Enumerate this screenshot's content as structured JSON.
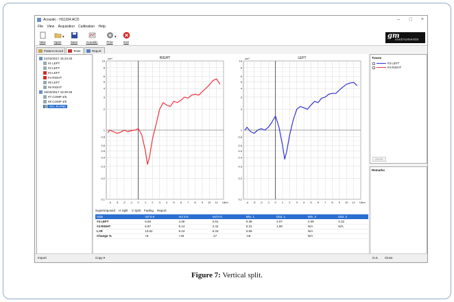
{
  "window": {
    "title": "Acoustic - H11334.ACD",
    "min": "–",
    "max": "□",
    "close": "×"
  },
  "menu": [
    "File",
    "View",
    "Acquisition",
    "Calibration",
    "Help"
  ],
  "toolbar": [
    {
      "label": "New",
      "icon": "new-file-icon"
    },
    {
      "label": "Open",
      "icon": "open-folder-icon"
    },
    {
      "label": "Save",
      "icon": "save-icon"
    },
    {
      "label": "Acoustic",
      "icon": "acoustic-icon"
    },
    {
      "label": "Print",
      "icon": "print-icon"
    },
    {
      "label": "Exit",
      "icon": "exit-icon"
    }
  ],
  "brand": {
    "line1": "gm",
    "line2": "instruments"
  },
  "tabs": [
    "Patient record",
    "Tests",
    "Report"
  ],
  "tree": [
    {
      "label": "21/02/2017 15:34:40",
      "level": 0
    },
    {
      "label": "#1 LEFT",
      "level": 1
    },
    {
      "label": "#2 LEFT",
      "level": 1
    },
    {
      "label": "#3 LEFT",
      "level": 1,
      "mark": true
    },
    {
      "label": "#4 RIGHT",
      "level": 1,
      "mark": true
    },
    {
      "label": "#5 LEFT",
      "level": 1
    },
    {
      "label": "#6 RIGHT",
      "level": 1
    },
    {
      "label": "15/10/2017 15:30:25",
      "level": 0
    },
    {
      "label": "#7 COMP 4/6",
      "level": 1
    },
    {
      "label": "#8 COMP 3/5",
      "level": 1
    },
    {
      "label": "#3 L R+P60",
      "level": 1,
      "selected": true
    }
  ],
  "charts": {
    "right_title": "RIGHT",
    "left_title": "LEFT",
    "y_unit": "cm²",
    "x_unit": "cm",
    "y_ticks": [
      "10",
      "8",
      "6",
      "5",
      "4",
      "3",
      "2",
      "1",
      "0.8",
      "0.6",
      "0.5",
      "0.4",
      "0.3",
      "0.2",
      "0.1"
    ],
    "x_ticks": [
      "-4",
      "-3",
      "-2",
      "-1",
      "0",
      "1",
      "2",
      "3",
      "4",
      "5",
      "6",
      "7",
      "8",
      "9",
      "10",
      "11",
      "12"
    ],
    "colors": {
      "right": "#e8303a",
      "left": "#3030d8"
    }
  },
  "chart_data": [
    {
      "type": "line",
      "title": "RIGHT",
      "xlabel": "cm",
      "ylabel": "cm²",
      "ylog": true,
      "xlim": [
        -4.5,
        12
      ],
      "ylim": [
        0.1,
        10
      ],
      "series": [
        {
          "name": "#4 RIGHT",
          "color": "#e8303a",
          "x": [
            -4.3,
            -4,
            -3.5,
            -3,
            -2.5,
            -2,
            -1.5,
            -1,
            -0.5,
            0,
            0.5,
            1,
            1.3,
            1.6,
            2,
            2.5,
            3,
            3.5,
            4,
            4.5,
            5,
            5.5,
            6,
            6.5,
            7,
            7.5,
            8,
            8.5,
            9,
            9.5,
            10,
            10.5,
            11,
            11.5
          ],
          "y": [
            0.92,
            1.0,
            0.95,
            0.9,
            0.93,
            1.0,
            0.95,
            0.98,
            1.0,
            1.05,
            0.85,
            0.5,
            0.32,
            0.42,
            0.75,
            1.2,
            2.0,
            2.5,
            2.3,
            2.2,
            2.6,
            2.5,
            2.7,
            3.0,
            2.9,
            3.2,
            3.3,
            3.2,
            3.6,
            4.0,
            4.5,
            5.2,
            5.5,
            4.6
          ]
        }
      ]
    },
    {
      "type": "line",
      "title": "LEFT",
      "xlabel": "cm",
      "ylabel": "cm²",
      "ylog": true,
      "xlim": [
        -4.5,
        12
      ],
      "ylim": [
        0.1,
        10
      ],
      "series": [
        {
          "name": "#3 LEFT",
          "color": "#3030d8",
          "x": [
            -4.3,
            -4,
            -3.5,
            -3,
            -2.5,
            -2,
            -1.5,
            -1,
            -0.5,
            0,
            0.5,
            1,
            1.3,
            1.6,
            2,
            2.5,
            3,
            3.5,
            4,
            4.5,
            5,
            5.5,
            6,
            6.5,
            7,
            7.5,
            8,
            8.5,
            9,
            9.5,
            10,
            10.5,
            11,
            11.5
          ],
          "y": [
            1.0,
            1.1,
            0.95,
            0.9,
            1.0,
            1.05,
            1.0,
            1.1,
            1.3,
            1.6,
            1.1,
            0.6,
            0.38,
            0.5,
            0.85,
            1.4,
            2.0,
            2.2,
            2.1,
            2.0,
            2.3,
            2.6,
            2.5,
            2.9,
            3.0,
            3.3,
            3.4,
            3.4,
            3.8,
            4.2,
            4.6,
            4.8,
            4.9,
            4.4
          ]
        }
      ]
    }
  ],
  "subtabs": [
    "Superimposed",
    "H Split",
    "V Split",
    "Fading",
    "Report"
  ],
  "table": {
    "headers": [
      "Side",
      "Vol 0-5",
      "Vol 2-5",
      "Vol 0-3",
      "Min. 1",
      "Dist. 1",
      "Min. 2",
      "Dist. 2"
    ],
    "rows": [
      [
        "#3 LEFT",
        "6.65",
        "4.30",
        "2.91",
        "0.38",
        "2.07",
        "2.09",
        "4.32"
      ],
      [
        "#4 RIGHT",
        "6.97",
        "5.14",
        "2.42",
        "0.31",
        "1.90",
        "N/A",
        "N/A"
      ],
      [
        "L+R",
        "13.62",
        "9.44",
        "5.33",
        "0.69",
        "",
        "N/A",
        ""
      ],
      [
        "Change %",
        "+5",
        "+19",
        "-17",
        "-18",
        "",
        "N/A",
        ""
      ]
    ]
  },
  "traces": {
    "title": "Traces",
    "items": [
      {
        "label": "#3 LEFT",
        "color": "#3030d8"
      },
      {
        "label": "#4 RIGHT",
        "color": "#e8303a"
      }
    ],
    "zoom": "Zoom"
  },
  "remarks": {
    "title": "Remarks"
  },
  "status": {
    "left": "Import",
    "copy": "Copy ▾",
    "ok": "O.K.",
    "close": "Close"
  },
  "caption": {
    "bold": "Figure 7:",
    "text": " Vertical split."
  }
}
